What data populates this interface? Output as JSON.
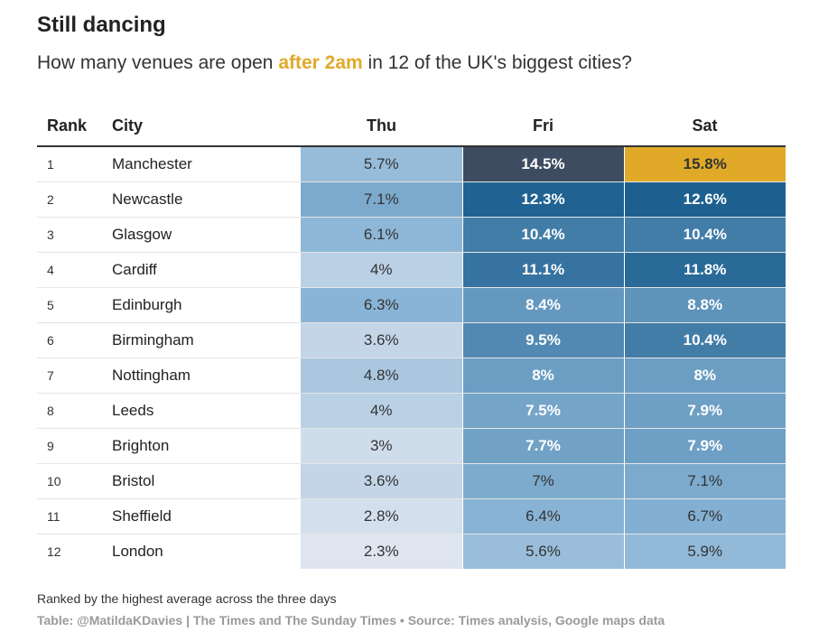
{
  "header": {
    "title": "Still dancing",
    "subtitle_pre": "How many venues are open ",
    "subtitle_highlight": "after 2am",
    "subtitle_post": " in 12 of the UK's biggest cities?"
  },
  "table": {
    "columns": [
      "Rank",
      "City",
      "Thu",
      "Fri",
      "Sat"
    ]
  },
  "chart_data": {
    "type": "table",
    "title": "Still dancing",
    "subtitle": "How many venues are open after 2am in 12 of the UK's biggest cities?",
    "columns": [
      "Rank",
      "City",
      "Thu",
      "Fri",
      "Sat"
    ],
    "value_format": "percent",
    "highlight_cell": {
      "row": 0,
      "day": "Sat",
      "color": "#e0aa28"
    },
    "rows": [
      {
        "rank": "1",
        "city": "Manchester",
        "thu": 5.7,
        "fri": 14.5,
        "sat": 15.8
      },
      {
        "rank": "2",
        "city": "Newcastle",
        "thu": 7.1,
        "fri": 12.3,
        "sat": 12.6
      },
      {
        "rank": "3",
        "city": "Glasgow",
        "thu": 6.1,
        "fri": 10.4,
        "sat": 10.4
      },
      {
        "rank": "4",
        "city": "Cardiff",
        "thu": 4,
        "fri": 11.1,
        "sat": 11.8
      },
      {
        "rank": "5",
        "city": "Edinburgh",
        "thu": 6.3,
        "fri": 8.4,
        "sat": 8.8
      },
      {
        "rank": "6",
        "city": "Birmingham",
        "thu": 3.6,
        "fri": 9.5,
        "sat": 10.4
      },
      {
        "rank": "7",
        "city": "Nottingham",
        "thu": 4.8,
        "fri": 8,
        "sat": 8
      },
      {
        "rank": "8",
        "city": "Leeds",
        "thu": 4,
        "fri": 7.5,
        "sat": 7.9
      },
      {
        "rank": "9",
        "city": "Brighton",
        "thu": 3,
        "fri": 7.7,
        "sat": 7.9
      },
      {
        "rank": "10",
        "city": "Bristol",
        "thu": 3.6,
        "fri": 7,
        "sat": 7.1
      },
      {
        "rank": "11",
        "city": "Sheffield",
        "thu": 2.8,
        "fri": 6.4,
        "sat": 6.7
      },
      {
        "rank": "12",
        "city": "London",
        "thu": 2.3,
        "fri": 5.6,
        "sat": 5.9
      }
    ],
    "color_scale": {
      "low": "#e4e9f2",
      "mid": "#86b2d4",
      "high": "#1d6090",
      "top": "#3d4c60"
    }
  },
  "footer": {
    "note": "Ranked by the highest average across the three days",
    "source": "Table: @MatildaKDavies | The Times and The Sunday Times • Source: Times analysis, Google maps data"
  }
}
